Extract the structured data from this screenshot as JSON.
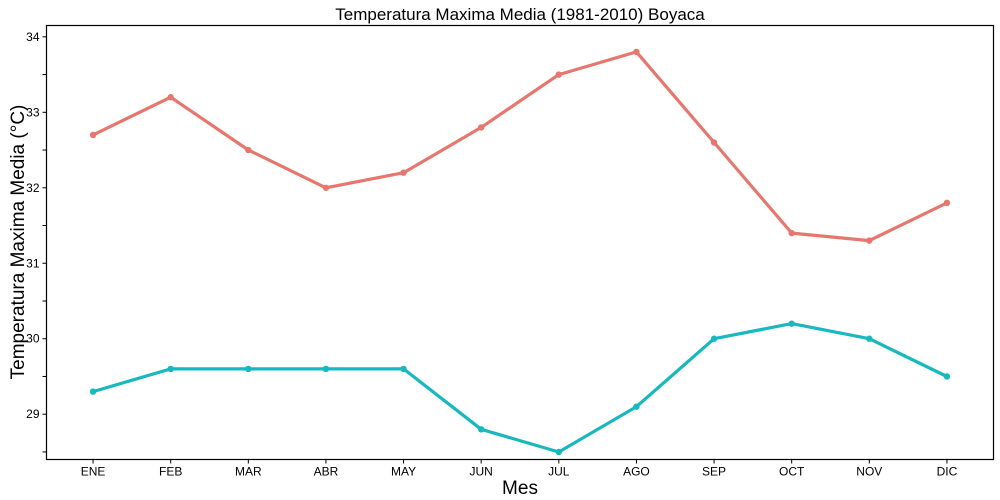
{
  "chart_data": {
    "type": "line",
    "title": "Temperatura Maxima Media (1981-2010)  Boyaca",
    "xlabel": "Mes",
    "ylabel": "Temperatura Maxima Media  (°C)",
    "categories": [
      "ENE",
      "FEB",
      "MAR",
      "ABR",
      "MAY",
      "JUN",
      "JUL",
      "AGO",
      "SEP",
      "OCT",
      "NOV",
      "DIC"
    ],
    "yticks": [
      29,
      30,
      31,
      32,
      33,
      34
    ],
    "ylim": [
      28.4,
      34.15
    ],
    "grid": false,
    "legend": "none",
    "series": [
      {
        "color": "#E7776E",
        "values": [
          32.7,
          33.2,
          32.5,
          32.0,
          32.2,
          32.8,
          33.5,
          33.8,
          32.6,
          31.4,
          31.3,
          31.8
        ]
      },
      {
        "color": "#17B8BE",
        "values": [
          29.3,
          29.6,
          29.6,
          29.6,
          29.6,
          28.8,
          28.5,
          29.1,
          30.0,
          30.2,
          30.0,
          29.5
        ]
      }
    ]
  }
}
